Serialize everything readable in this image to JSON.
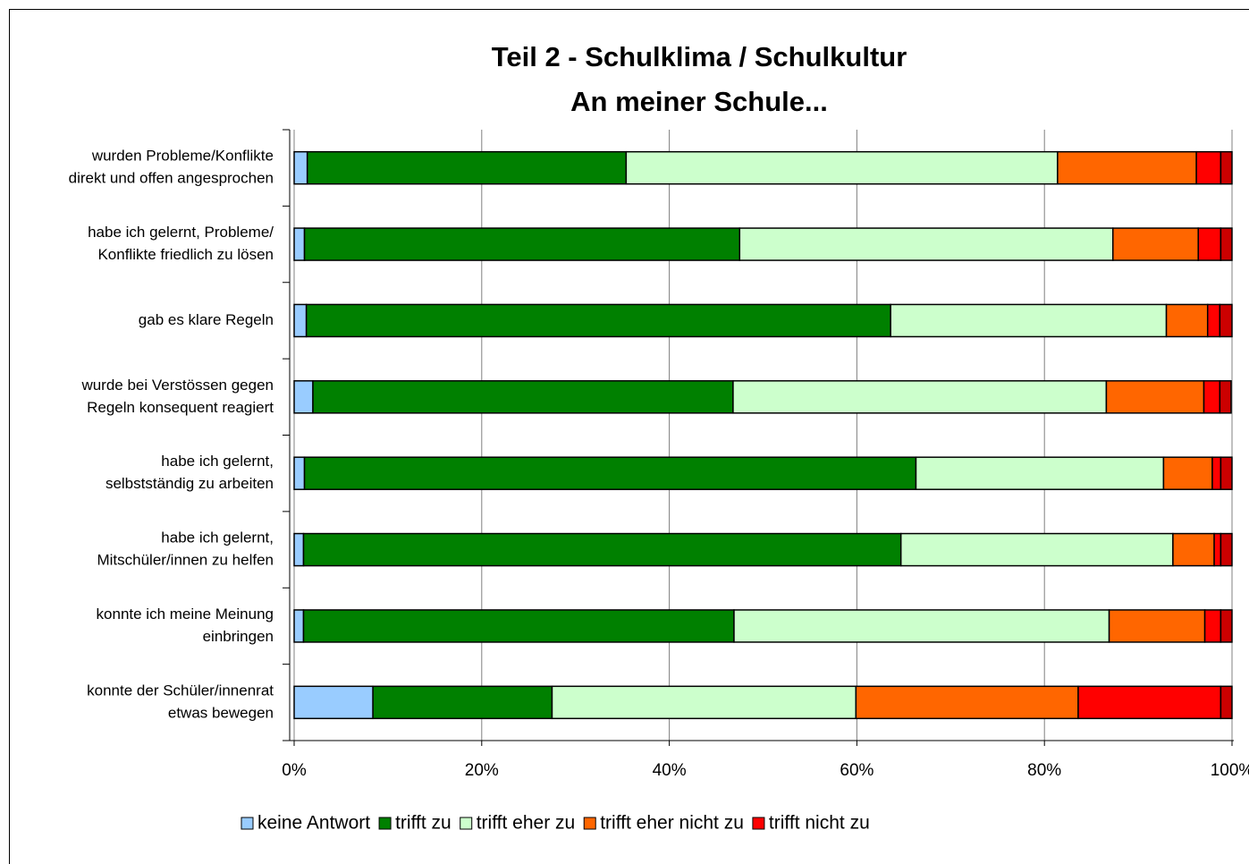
{
  "chart_data": {
    "type": "stacked-bar-horizontal",
    "title": [
      "Teil 2 - Schulklima / Schulkultur",
      "An meiner Schule..."
    ],
    "categories": [
      [
        "wurden Probleme/Konflikte",
        "direkt und offen angesprochen"
      ],
      [
        "habe ich gelernt, Probleme/",
        "Konflikte friedlich zu lösen"
      ],
      [
        "gab es klare Regeln"
      ],
      [
        "wurde bei Verstössen gegen",
        "Regeln konsequent reagiert"
      ],
      [
        "habe ich gelernt,",
        "selbstständig zu arbeiten"
      ],
      [
        "habe ich gelernt,",
        "Mitschüler/innen zu helfen"
      ],
      [
        "konnte ich meine Meinung",
        "einbringen"
      ],
      [
        "konnte der Schüler/innenrat",
        "etwas bewegen"
      ]
    ],
    "series": [
      {
        "name": "keine Antwort",
        "color": "#99ccff",
        "values": [
          1.4,
          1.1,
          1.3,
          2.0,
          1.1,
          1.0,
          1.0,
          8.4
        ]
      },
      {
        "name": "trifft zu",
        "color": "#008000",
        "values": [
          34.0,
          46.4,
          62.3,
          44.8,
          65.2,
          63.7,
          45.9,
          19.1
        ]
      },
      {
        "name": "trifft eher zu",
        "color": "#ccffcc",
        "values": [
          46.0,
          39.8,
          29.4,
          39.8,
          26.4,
          29.0,
          40.0,
          32.4
        ]
      },
      {
        "name": "trifft eher nicht zu",
        "color": "#ff6600",
        "values": [
          14.8,
          9.1,
          4.4,
          10.4,
          5.2,
          4.4,
          10.2,
          23.7
        ]
      },
      {
        "name": "trifft nicht zu",
        "color": "#ff0000",
        "values": [
          2.6,
          2.4,
          1.3,
          1.7,
          0.9,
          0.7,
          1.7,
          15.2
        ]
      },
      {
        "color": "#cc0000",
        "values": [
          1.2,
          1.2,
          1.3,
          1.2,
          1.2,
          1.2,
          1.2,
          1.2
        ]
      }
    ],
    "xlim": [
      0,
      100
    ],
    "xticks": [
      {
        "value": 0,
        "label": "0%"
      },
      {
        "value": 20,
        "label": "20%"
      },
      {
        "value": 40,
        "label": "40%"
      },
      {
        "value": 60,
        "label": "60%"
      },
      {
        "value": 80,
        "label": "80%"
      },
      {
        "value": 100,
        "label": "100%"
      }
    ],
    "grid": true,
    "legend": "bottom"
  }
}
